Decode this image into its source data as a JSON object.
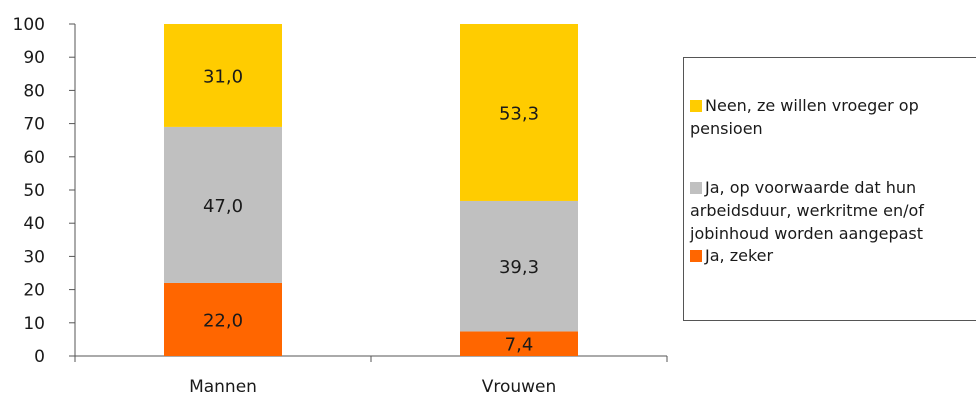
{
  "chart_data": {
    "type": "bar",
    "stacked": true,
    "categories": [
      "Mannen",
      "Vrouwen"
    ],
    "series": [
      {
        "name": "Ja, zeker",
        "values": [
          22.0,
          7.4
        ],
        "labels": [
          "22,0",
          "7,4"
        ],
        "color": "#ff6600"
      },
      {
        "name": "Ja, op voorwaarde dat hun arbeidsduur, werkritme en/of jobinhoud worden aangepast",
        "values": [
          47.0,
          39.3
        ],
        "labels": [
          "47,0",
          "39,3"
        ],
        "color": "#c0c0c0"
      },
      {
        "name": "Neen, ze willen vroeger op pensioen",
        "values": [
          31.0,
          53.3
        ],
        "labels": [
          "31,0",
          "53,3"
        ],
        "color": "#ffcc00"
      }
    ],
    "ylim": [
      0,
      100
    ],
    "yticks": [
      0,
      10,
      20,
      30,
      40,
      50,
      60,
      70,
      80,
      90,
      100
    ],
    "title": "",
    "xlabel": "",
    "ylabel": "",
    "grid": false,
    "legend_position": "right"
  },
  "legend": {
    "items": [
      {
        "text": "Neen, ze willen vroeger op pensioen",
        "color": "#ffcc00"
      },
      {
        "text": "Ja, op voorwaarde dat hun arbeidsduur, werkritme en/of jobinhoud worden aangepast",
        "color": "#c0c0c0"
      },
      {
        "text": "Ja, zeker",
        "color": "#ff6600"
      }
    ]
  }
}
